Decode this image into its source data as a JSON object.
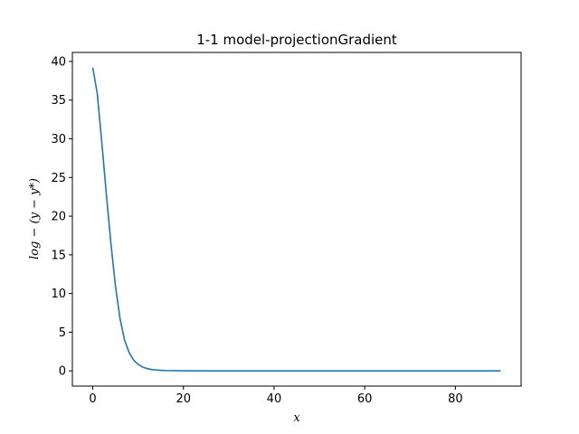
{
  "chart_data": {
    "type": "line",
    "title": "1-1 model-projectionGradient",
    "xlabel": "x",
    "ylabel": "log − (y − y*)",
    "xlim": [
      -4.5,
      94.5
    ],
    "ylim": [
      -1.96,
      41.16
    ],
    "xticks": [
      0,
      20,
      40,
      60,
      80
    ],
    "yticks": [
      0,
      5,
      10,
      15,
      20,
      25,
      30,
      35,
      40
    ],
    "grid": false,
    "legend": "none",
    "series": [
      {
        "color": "#1f77b4",
        "x": [
          0,
          1,
          2,
          3,
          4,
          5,
          6,
          7,
          8,
          9,
          10,
          11,
          12,
          13,
          14,
          15,
          16,
          17,
          18,
          19,
          20,
          25,
          30,
          40,
          50,
          60,
          70,
          80,
          90
        ],
        "y": [
          39.2,
          35.8,
          29.5,
          22.8,
          16.5,
          11.0,
          6.8,
          4.0,
          2.4,
          1.4,
          0.85,
          0.5,
          0.3,
          0.18,
          0.12,
          0.08,
          0.05,
          0.04,
          0.03,
          0.02,
          0.02,
          0.01,
          0.01,
          0.0,
          0.0,
          0.0,
          0.0,
          0.0,
          0.0
        ]
      }
    ]
  }
}
